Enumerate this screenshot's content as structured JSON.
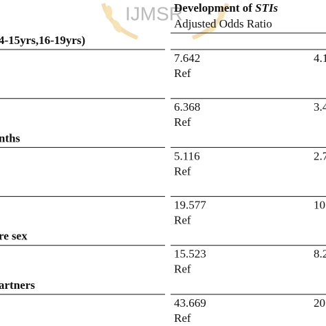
{
  "header": {
    "title": "Development of ",
    "title_emphasis": "STIs",
    "subtitle": "Adjusted Odds Ratio"
  },
  "watermark": "IJMSR",
  "rows": [
    {
      "label": "4-15yrs,16-19yrs)",
      "odds_ratio": "7.642",
      "reference": "Ref",
      "next_column": "4.1"
    },
    {
      "odds_ratio": "6.368",
      "reference": "Ref",
      "next_column": "3.4"
    },
    {
      "label": "nths",
      "odds_ratio": "5.116",
      "reference": "Ref",
      "next_column": "2.7"
    },
    {
      "odds_ratio": "19.577",
      "reference": "Ref",
      "next_column": "10"
    },
    {
      "label": "re sex",
      "odds_ratio": "15.523",
      "reference": "Ref",
      "next_column": "8.2"
    },
    {
      "label": "artners",
      "odds_ratio": "43.669",
      "reference": "Ref",
      "next_column": "20"
    }
  ]
}
